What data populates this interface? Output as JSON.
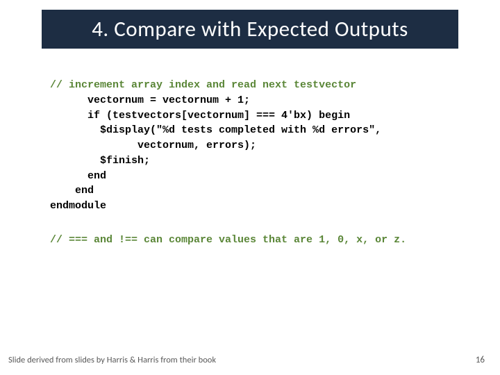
{
  "title": "4. Compare with Expected Outputs",
  "code": {
    "comment": "// increment array index and read next testvector",
    "line1": "      vectornum = vectornum + 1;",
    "line2": "      if (testvectors[vectornum] === 4'bx) begin",
    "line3": "        $display(\"%d tests completed with %d errors\",",
    "line4": "              vectornum, errors);",
    "line5": "        $finish;",
    "line6": "      end",
    "line7": "    end",
    "line8": "endmodule"
  },
  "note": "// === and !== can compare values that are 1, 0, x, or z.",
  "footer": {
    "attribution": "Slide derived from slides by Harris & Harris from their book",
    "page": "16"
  },
  "colors": {
    "title_bg": "#1d2d43",
    "title_fg": "#ffffff",
    "comment_fg": "#5a8637",
    "code_fg": "#000000",
    "footer_fg": "#595959",
    "page_bg": "#ffffff"
  },
  "typography": {
    "title_fontsize": 31,
    "code_fontsize": 15,
    "footer_fontsize": 12.5
  }
}
